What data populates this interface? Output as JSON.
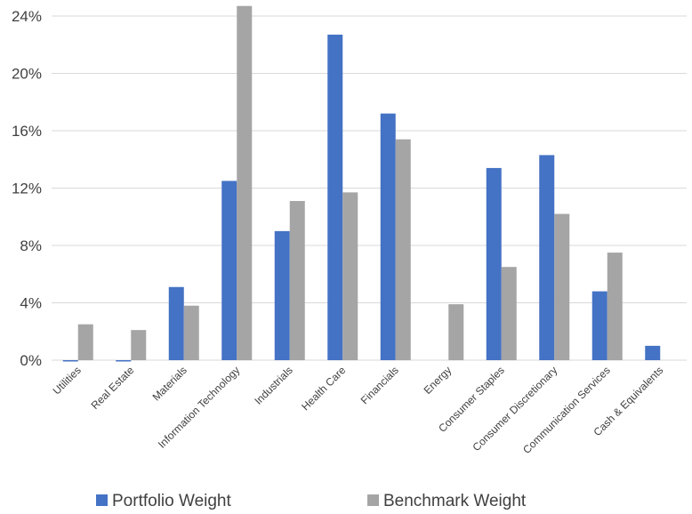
{
  "chart_data": {
    "type": "bar",
    "title": "",
    "xlabel": "",
    "ylabel": "",
    "ylim": [
      0,
      24
    ],
    "yticks": [
      "0%",
      "4%",
      "8%",
      "12%",
      "16%",
      "20%",
      "24%"
    ],
    "ytick_values": [
      0,
      4,
      8,
      12,
      16,
      20,
      24
    ],
    "grid": true,
    "legend_position": "bottom",
    "categories": [
      "Utilities",
      "Real Estate",
      "Materials",
      "Information Technology",
      "Industrials",
      "Health Care",
      "Financials",
      "Energy",
      "Consumer Staples",
      "Consumer Discretionary",
      "Communication Services",
      "Cash & Equivalents"
    ],
    "series": [
      {
        "name": "Portfolio Weight",
        "color": "#4472c4",
        "values": [
          0.0,
          0.0,
          5.1,
          12.5,
          9.0,
          22.7,
          17.2,
          0.0,
          13.4,
          14.3,
          4.8,
          1.0
        ]
      },
      {
        "name": "Benchmark Weight",
        "color": "#a5a5a5",
        "values": [
          2.5,
          2.1,
          3.8,
          24.7,
          11.1,
          11.7,
          15.4,
          3.9,
          6.5,
          10.2,
          7.5,
          0.0
        ]
      }
    ]
  }
}
